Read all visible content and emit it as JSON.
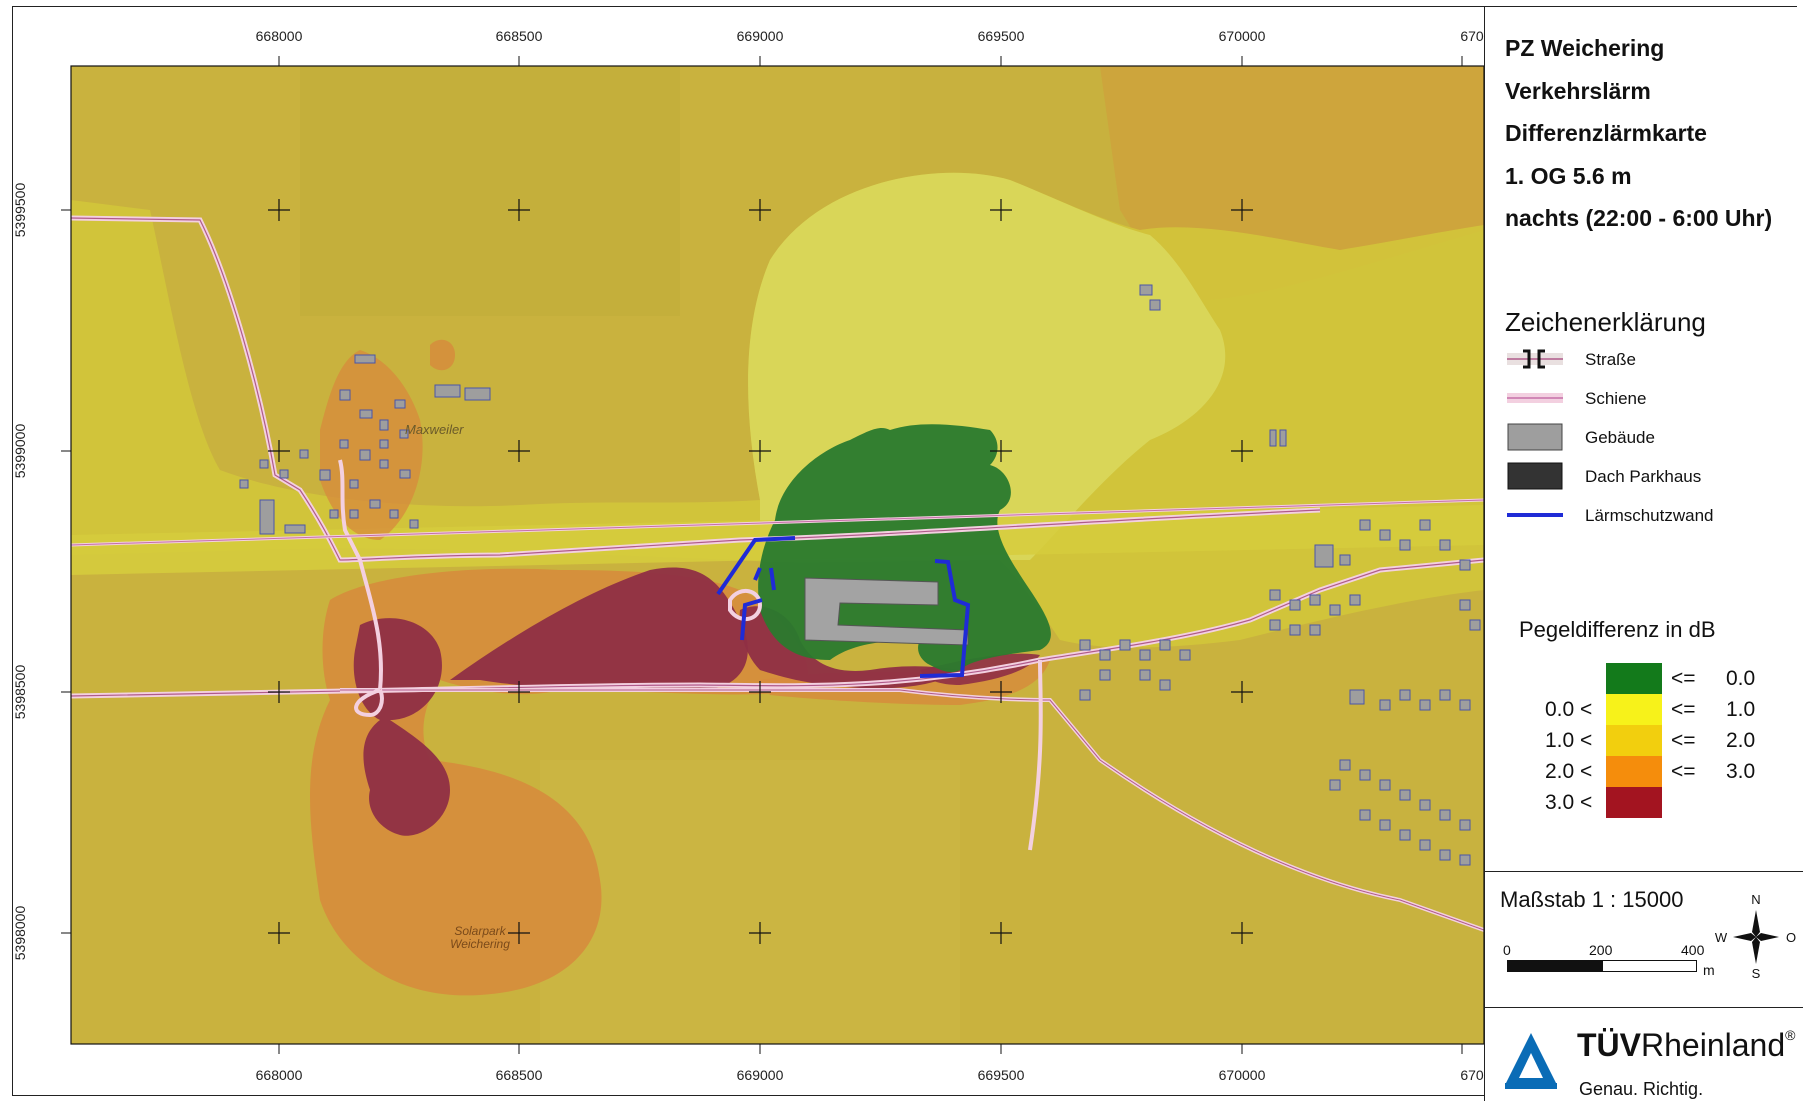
{
  "map": {
    "x_ticks": [
      "668000",
      "668500",
      "669000",
      "669500",
      "670000",
      "670"
    ],
    "y_ticks": [
      "5399500",
      "5399000",
      "5398500",
      "5398000"
    ],
    "place_labels": {
      "village": "Maxweiler",
      "solar_line1": "Solarpark",
      "solar_line2": "Weichering"
    }
  },
  "title_block": {
    "line1": "PZ Weichering",
    "line2": "Verkehrslärm",
    "line3": "Differenzlärmkarte",
    "line4": "1. OG 5.6 m",
    "line5": "nachts (22:00 - 6:00 Uhr)"
  },
  "legend": {
    "heading": "Zeichenerklärung",
    "items": [
      {
        "label": "Straße",
        "icon": "road-symbol"
      },
      {
        "label": "Schiene",
        "icon": "rail-symbol"
      },
      {
        "label": "Gebäude",
        "icon": "building-symbol",
        "color": "#9e9e9e"
      },
      {
        "label": "Dach Parkhaus",
        "icon": "parking-roof-symbol",
        "color": "#333333"
      },
      {
        "label": "Lärmschutzwand",
        "icon": "noise-barrier-symbol",
        "color": "#1f2bd6"
      }
    ]
  },
  "pegel": {
    "heading": "Pegeldifferenz in dB",
    "classes": [
      {
        "low": "",
        "op_low": "",
        "op_high": "<=",
        "high": "0.0",
        "color": "#137a1b"
      },
      {
        "low": "0.0",
        "op_low": "<",
        "op_high": "<=",
        "high": "1.0",
        "color": "#f7f21a"
      },
      {
        "low": "1.0",
        "op_low": "<",
        "op_high": "<=",
        "high": "2.0",
        "color": "#f2cf0e"
      },
      {
        "low": "2.0",
        "op_low": "<",
        "op_high": "<=",
        "high": "3.0",
        "color": "#f58d0c"
      },
      {
        "low": "3.0",
        "op_low": "<",
        "op_high": "",
        "high": "",
        "color": "#a31420"
      }
    ]
  },
  "scale": {
    "label": "Maßstab 1 : 15000",
    "ticks": [
      "0",
      "200",
      "400"
    ],
    "unit": "m"
  },
  "compass": {
    "n": "N",
    "s": "S",
    "w": "W",
    "o": "O"
  },
  "logo": {
    "brand_bold": "TÜV",
    "brand_rest": "Rheinland",
    "reg": "®",
    "slogan": "Genau. Richtig."
  }
}
